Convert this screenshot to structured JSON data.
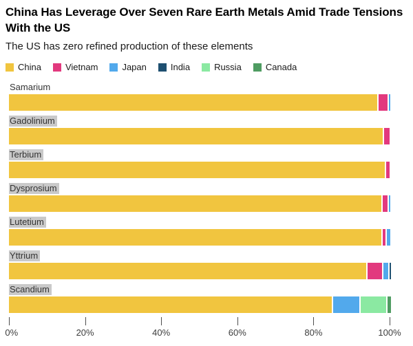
{
  "header": {
    "title": "China Has Leverage Over Seven Rare Earth Metals Amid Trade Tensions With the US",
    "subtitle": "The US has zero refined production of these elements"
  },
  "colors": {
    "china": "#F1C53F",
    "vietnam": "#E2397E",
    "japan": "#52A9EC",
    "india": "#1E4F70",
    "russia": "#8BE9A2",
    "canada": "#4F9C62",
    "label_highlight": "#C9C9C9"
  },
  "legend": [
    {
      "label": "China",
      "color": "#F1C53F"
    },
    {
      "label": "Vietnam",
      "color": "#E2397E"
    },
    {
      "label": "Japan",
      "color": "#52A9EC"
    },
    {
      "label": "India",
      "color": "#1E4F70"
    },
    {
      "label": "Russia",
      "color": "#8BE9A2"
    },
    {
      "label": "Canada",
      "color": "#4F9C62"
    }
  ],
  "chart_data": {
    "type": "bar",
    "orientation": "horizontal",
    "stacked": true,
    "unit": "% share of refined production",
    "title": "China Has Leverage Over Seven Rare Earth Metals Amid Trade Tensions With the US",
    "subtitle": "The US has zero refined production of these elements",
    "categories": [
      "Samarium",
      "Gadolinium",
      "Terbium",
      "Dysprosium",
      "Lutetium",
      "Yttrium",
      "Scandium"
    ],
    "category_label_highlighted": [
      false,
      true,
      true,
      true,
      true,
      true,
      true
    ],
    "series": [
      {
        "name": "China",
        "color": "#F1C53F",
        "values": [
          97.0,
          98.3,
          99.0,
          98.0,
          98.0,
          94.0,
          85.0
        ]
      },
      {
        "name": "Vietnam",
        "color": "#E2397E",
        "values": [
          2.4,
          1.7,
          1.0,
          1.5,
          1.0,
          4.0,
          0
        ]
      },
      {
        "name": "Japan",
        "color": "#52A9EC",
        "values": [
          0.6,
          0,
          0,
          0.5,
          1.0,
          1.5,
          7.0
        ]
      },
      {
        "name": "India",
        "color": "#1E4F70",
        "values": [
          0,
          0,
          0,
          0,
          0,
          0.5,
          0
        ]
      },
      {
        "name": "Russia",
        "color": "#8BE9A2",
        "values": [
          0,
          0,
          0,
          0,
          0,
          0,
          7.0
        ]
      },
      {
        "name": "Canada",
        "color": "#4F9C62",
        "values": [
          0,
          0,
          0,
          0,
          0,
          0,
          1.0
        ]
      }
    ],
    "xlim": [
      0,
      100
    ],
    "x_ticks": [
      "0%",
      "20%",
      "40%",
      "60%",
      "80%",
      "100%"
    ],
    "x_tick_values": [
      0,
      20,
      40,
      60,
      80,
      100
    ],
    "legend_position": "top",
    "grid": false
  }
}
